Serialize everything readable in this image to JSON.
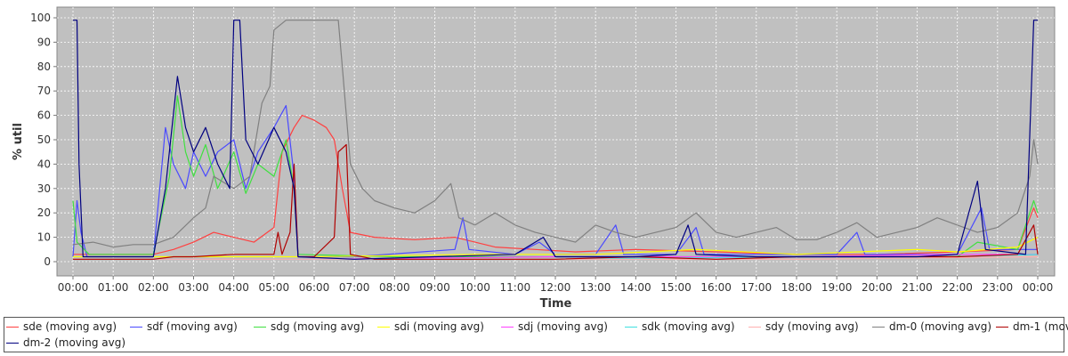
{
  "chart_data": {
    "type": "line",
    "title": "",
    "xlabel": "Time",
    "ylabel": "% util",
    "ylim": [
      0,
      100
    ],
    "xlim": [
      "00:00",
      "24:00"
    ],
    "grid": true,
    "legend_position": "bottom",
    "plot_background": "#c0c0c0",
    "x_ticks": [
      "00:00",
      "01:00",
      "02:00",
      "03:00",
      "04:00",
      "05:00",
      "06:00",
      "07:00",
      "08:00",
      "09:00",
      "10:00",
      "11:00",
      "12:00",
      "13:00",
      "14:00",
      "15:00",
      "16:00",
      "17:00",
      "18:00",
      "19:00",
      "20:00",
      "21:00",
      "22:00",
      "23:00",
      "00:00"
    ],
    "y_ticks": [
      "0",
      "10",
      "20",
      "30",
      "40",
      "50",
      "60",
      "70",
      "80",
      "90",
      "100"
    ],
    "series": [
      {
        "name": "sde (moving avg)",
        "color": "#ff4040",
        "points": [
          [
            0.0,
            3
          ],
          [
            2.0,
            3
          ],
          [
            2.5,
            5
          ],
          [
            3.0,
            8
          ],
          [
            3.5,
            12
          ],
          [
            4.0,
            10
          ],
          [
            4.5,
            8
          ],
          [
            5.0,
            14
          ],
          [
            5.2,
            45
          ],
          [
            5.5,
            55
          ],
          [
            5.7,
            60
          ],
          [
            6.0,
            58
          ],
          [
            6.3,
            55
          ],
          [
            6.5,
            50
          ],
          [
            6.7,
            30
          ],
          [
            6.9,
            12
          ],
          [
            7.5,
            10
          ],
          [
            8.5,
            9
          ],
          [
            9.5,
            10
          ],
          [
            10.5,
            6
          ],
          [
            11.5,
            5
          ],
          [
            12.5,
            4
          ],
          [
            14,
            5
          ],
          [
            16,
            4
          ],
          [
            18,
            3
          ],
          [
            20,
            3
          ],
          [
            22,
            4
          ],
          [
            23.5,
            5
          ],
          [
            23.9,
            22
          ],
          [
            24.0,
            18
          ]
        ]
      },
      {
        "name": "sdf (moving avg)",
        "color": "#4a4aff",
        "points": [
          [
            0.0,
            2
          ],
          [
            0.1,
            25
          ],
          [
            0.2,
            12
          ],
          [
            0.35,
            2
          ],
          [
            2.0,
            2
          ],
          [
            2.3,
            55
          ],
          [
            2.5,
            40
          ],
          [
            2.8,
            30
          ],
          [
            3.0,
            45
          ],
          [
            3.3,
            35
          ],
          [
            3.6,
            45
          ],
          [
            4.0,
            50
          ],
          [
            4.3,
            30
          ],
          [
            4.6,
            45
          ],
          [
            5.0,
            55
          ],
          [
            5.3,
            64
          ],
          [
            5.5,
            35
          ],
          [
            5.6,
            2
          ],
          [
            7.0,
            2
          ],
          [
            9.5,
            5
          ],
          [
            9.7,
            18
          ],
          [
            9.85,
            5
          ],
          [
            11.0,
            3
          ],
          [
            11.6,
            8
          ],
          [
            12.0,
            3
          ],
          [
            13.0,
            3
          ],
          [
            13.5,
            15
          ],
          [
            13.7,
            3
          ],
          [
            15.0,
            3
          ],
          [
            15.5,
            14
          ],
          [
            15.7,
            3
          ],
          [
            17.0,
            3
          ],
          [
            19.0,
            3
          ],
          [
            19.5,
            12
          ],
          [
            19.7,
            3
          ],
          [
            22.0,
            3
          ],
          [
            22.6,
            22
          ],
          [
            22.8,
            5
          ],
          [
            24.0,
            5
          ]
        ]
      },
      {
        "name": "sdg (moving avg)",
        "color": "#40e040",
        "points": [
          [
            0.0,
            25
          ],
          [
            0.1,
            8
          ],
          [
            0.4,
            3
          ],
          [
            2.0,
            3
          ],
          [
            2.4,
            35
          ],
          [
            2.6,
            68
          ],
          [
            2.8,
            45
          ],
          [
            3.0,
            35
          ],
          [
            3.3,
            48
          ],
          [
            3.6,
            30
          ],
          [
            4.0,
            45
          ],
          [
            4.3,
            28
          ],
          [
            4.6,
            40
          ],
          [
            5.0,
            35
          ],
          [
            5.3,
            50
          ],
          [
            5.5,
            30
          ],
          [
            5.6,
            3
          ],
          [
            8.0,
            2
          ],
          [
            12,
            2
          ],
          [
            16,
            2
          ],
          [
            20,
            2
          ],
          [
            22,
            2
          ],
          [
            22.5,
            8
          ],
          [
            23.5,
            5
          ],
          [
            23.9,
            25
          ],
          [
            24.0,
            20
          ]
        ]
      },
      {
        "name": "sdi (moving avg)",
        "color": "#ffff00",
        "points": [
          [
            0.0,
            2
          ],
          [
            6.0,
            2
          ],
          [
            10,
            3
          ],
          [
            13,
            3
          ],
          [
            15.5,
            5
          ],
          [
            18,
            3
          ],
          [
            21,
            5
          ],
          [
            22,
            4
          ],
          [
            23.5,
            6
          ],
          [
            24.0,
            10
          ]
        ]
      },
      {
        "name": "sdj (moving avg)",
        "color": "#ff40ff",
        "points": [
          [
            0.0,
            1
          ],
          [
            6.0,
            1
          ],
          [
            12,
            2
          ],
          [
            18,
            2
          ],
          [
            22,
            3
          ],
          [
            24.0,
            3
          ]
        ]
      },
      {
        "name": "sdk (moving avg)",
        "color": "#40e0e0",
        "points": [
          [
            0.0,
            1
          ],
          [
            6.0,
            1
          ],
          [
            12,
            1
          ],
          [
            18,
            2
          ],
          [
            22,
            2
          ],
          [
            24.0,
            3
          ]
        ]
      },
      {
        "name": "sdy (moving avg)",
        "color": "#ffb0b0",
        "points": [
          [
            0.0,
            1
          ],
          [
            6.0,
            1
          ],
          [
            12,
            1
          ],
          [
            18,
            1
          ],
          [
            24.0,
            2
          ]
        ]
      },
      {
        "name": "dm-0 (moving avg)",
        "color": "#808080",
        "points": [
          [
            0.0,
            7
          ],
          [
            0.5,
            8
          ],
          [
            1.0,
            6
          ],
          [
            1.5,
            7
          ],
          [
            2.0,
            7
          ],
          [
            2.5,
            10
          ],
          [
            3.0,
            18
          ],
          [
            3.3,
            22
          ],
          [
            3.5,
            35
          ],
          [
            4.0,
            30
          ],
          [
            4.4,
            35
          ],
          [
            4.7,
            65
          ],
          [
            4.9,
            72
          ],
          [
            5.0,
            95
          ],
          [
            5.3,
            99
          ],
          [
            6.0,
            99
          ],
          [
            6.6,
            99
          ],
          [
            6.7,
            80
          ],
          [
            6.9,
            40
          ],
          [
            7.2,
            30
          ],
          [
            7.5,
            25
          ],
          [
            8.0,
            22
          ],
          [
            8.5,
            20
          ],
          [
            9.0,
            25
          ],
          [
            9.4,
            32
          ],
          [
            9.6,
            18
          ],
          [
            10.0,
            15
          ],
          [
            10.5,
            20
          ],
          [
            11.0,
            15
          ],
          [
            11.5,
            12
          ],
          [
            12.0,
            10
          ],
          [
            12.5,
            8
          ],
          [
            13.0,
            15
          ],
          [
            13.5,
            12
          ],
          [
            14.0,
            10
          ],
          [
            14.5,
            12
          ],
          [
            15.0,
            14
          ],
          [
            15.5,
            20
          ],
          [
            16.0,
            12
          ],
          [
            16.5,
            10
          ],
          [
            17.0,
            12
          ],
          [
            17.5,
            14
          ],
          [
            18.0,
            9
          ],
          [
            18.5,
            9
          ],
          [
            19.0,
            12
          ],
          [
            19.5,
            16
          ],
          [
            20.0,
            10
          ],
          [
            20.5,
            12
          ],
          [
            21.0,
            14
          ],
          [
            21.5,
            18
          ],
          [
            22.0,
            15
          ],
          [
            22.5,
            12
          ],
          [
            23.0,
            14
          ],
          [
            23.5,
            20
          ],
          [
            23.8,
            35
          ],
          [
            23.9,
            50
          ],
          [
            24.0,
            40
          ]
        ]
      },
      {
        "name": "dm-1 (moving avg)",
        "color": "#b00000",
        "points": [
          [
            0.0,
            1
          ],
          [
            2.0,
            1
          ],
          [
            2.5,
            2
          ],
          [
            3.0,
            2
          ],
          [
            4.0,
            3
          ],
          [
            5.0,
            3
          ],
          [
            5.1,
            12
          ],
          [
            5.2,
            3
          ],
          [
            5.4,
            12
          ],
          [
            5.5,
            40
          ],
          [
            5.6,
            2
          ],
          [
            6.0,
            2
          ],
          [
            6.5,
            10
          ],
          [
            6.6,
            45
          ],
          [
            6.8,
            48
          ],
          [
            6.9,
            3
          ],
          [
            7.5,
            1
          ],
          [
            12,
            1
          ],
          [
            14,
            2
          ],
          [
            16,
            1
          ],
          [
            18,
            2
          ],
          [
            20,
            2
          ],
          [
            22,
            2
          ],
          [
            23.5,
            3
          ],
          [
            23.9,
            15
          ],
          [
            24.0,
            3
          ]
        ]
      },
      {
        "name": "dm-2 (moving avg)",
        "color": "#000080",
        "points": [
          [
            0.0,
            99
          ],
          [
            0.1,
            99
          ],
          [
            0.15,
            40
          ],
          [
            0.25,
            2
          ],
          [
            2.0,
            2
          ],
          [
            2.3,
            30
          ],
          [
            2.6,
            76
          ],
          [
            2.8,
            55
          ],
          [
            3.0,
            45
          ],
          [
            3.3,
            55
          ],
          [
            3.6,
            40
          ],
          [
            3.9,
            30
          ],
          [
            4.0,
            99
          ],
          [
            4.15,
            99
          ],
          [
            4.3,
            50
          ],
          [
            4.6,
            40
          ],
          [
            5.0,
            55
          ],
          [
            5.3,
            45
          ],
          [
            5.5,
            30
          ],
          [
            5.6,
            2
          ],
          [
            7.0,
            1
          ],
          [
            9.0,
            2
          ],
          [
            11.0,
            3
          ],
          [
            11.7,
            10
          ],
          [
            12,
            2
          ],
          [
            14,
            2
          ],
          [
            15.0,
            3
          ],
          [
            15.3,
            15
          ],
          [
            15.5,
            3
          ],
          [
            17,
            2
          ],
          [
            19,
            2
          ],
          [
            21,
            2
          ],
          [
            22.0,
            3
          ],
          [
            22.5,
            33
          ],
          [
            22.7,
            5
          ],
          [
            23.7,
            3
          ],
          [
            23.9,
            99
          ],
          [
            24.0,
            99
          ]
        ]
      }
    ]
  }
}
